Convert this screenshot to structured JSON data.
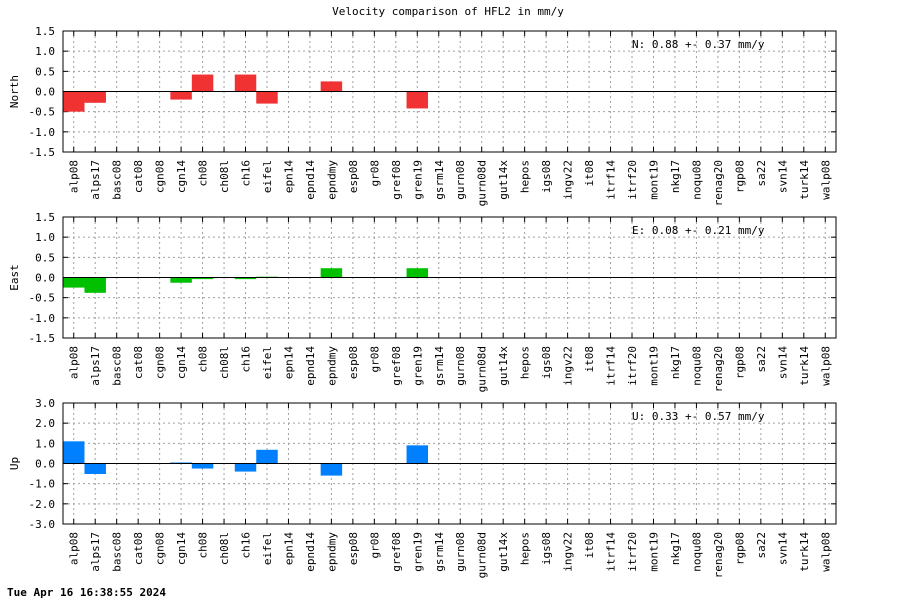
{
  "title": "Velocity comparison of HFL2 in mm/y",
  "timestamp": "Tue Apr 16 16:38:55 2024",
  "chart_data": [
    {
      "type": "bar",
      "ylabel": "North",
      "ylim": [
        -1.5,
        1.5
      ],
      "yticks": [
        "1.5",
        "1.0",
        "0.5",
        "0.0",
        "-0.5",
        "-1.0",
        "-1.5"
      ],
      "grid": true,
      "color": "#f03232",
      "annotation": "N:   0.88 +-  0.37 mm/y",
      "categories": [
        "alp08",
        "alps17",
        "basc08",
        "cat08",
        "cgn08",
        "cgn14",
        "ch08",
        "ch08l",
        "ch16",
        "eifel",
        "epn14",
        "epnd14",
        "epndmy",
        "esp08",
        "gr08",
        "gref08",
        "gren19",
        "gsrm14",
        "gurn08",
        "gurn08d",
        "gut14x",
        "hepos",
        "igs08",
        "ingv22",
        "it08",
        "itrf14",
        "itrf20",
        "mont19",
        "nkg17",
        "noqu08",
        "renag20",
        "rgp08",
        "sa22",
        "svn14",
        "turk14",
        "walp08"
      ],
      "values": [
        -0.5,
        -0.28,
        0,
        0,
        0,
        -0.2,
        0.42,
        0,
        0.42,
        -0.3,
        0,
        0,
        0.25,
        0,
        0,
        0,
        -0.42,
        0,
        0,
        0,
        0,
        0,
        0,
        0,
        0,
        0,
        0,
        0,
        0,
        0,
        0,
        0,
        0,
        0,
        0,
        0
      ]
    },
    {
      "type": "bar",
      "ylabel": "East",
      "ylim": [
        -1.5,
        1.5
      ],
      "yticks": [
        "1.5",
        "1.0",
        "0.5",
        "0.0",
        "-0.5",
        "-1.0",
        "-1.5"
      ],
      "grid": true,
      "color": "#00c000",
      "annotation": "E:   0.08 +-  0.21 mm/y",
      "categories": [
        "alp08",
        "alps17",
        "basc08",
        "cat08",
        "cgn08",
        "cgn14",
        "ch08",
        "ch08l",
        "ch16",
        "eifel",
        "epn14",
        "epnd14",
        "epndmy",
        "esp08",
        "gr08",
        "gref08",
        "gren19",
        "gsrm14",
        "gurn08",
        "gurn08d",
        "gut14x",
        "hepos",
        "igs08",
        "ingv22",
        "it08",
        "itrf14",
        "itrf20",
        "mont19",
        "nkg17",
        "noqu08",
        "renag20",
        "rgp08",
        "sa22",
        "svn14",
        "turk14",
        "walp08"
      ],
      "values": [
        -0.25,
        -0.38,
        0,
        0,
        0,
        -0.13,
        -0.04,
        0,
        -0.04,
        0.02,
        0,
        0,
        0.23,
        0,
        0,
        0,
        0.23,
        0,
        0,
        0,
        0,
        0,
        0,
        0,
        0,
        0,
        0,
        0,
        0,
        0,
        0,
        0,
        0,
        0,
        0,
        0
      ]
    },
    {
      "type": "bar",
      "ylabel": "Up",
      "ylim": [
        -3.0,
        3.0
      ],
      "yticks": [
        "3.0",
        "2.0",
        "1.0",
        "0.0",
        "-1.0",
        "-2.0",
        "-3.0"
      ],
      "grid": true,
      "color": "#0080ff",
      "annotation": "U:   0.33 +-  0.57 mm/y",
      "categories": [
        "alp08",
        "alps17",
        "basc08",
        "cat08",
        "cgn08",
        "cgn14",
        "ch08",
        "ch08l",
        "ch16",
        "eifel",
        "epn14",
        "epnd14",
        "epndmy",
        "esp08",
        "gr08",
        "gref08",
        "gren19",
        "gsrm14",
        "gurn08",
        "gurn08d",
        "gut14x",
        "hepos",
        "igs08",
        "ingv22",
        "it08",
        "itrf14",
        "itrf20",
        "mont19",
        "nkg17",
        "noqu08",
        "renag20",
        "rgp08",
        "sa22",
        "svn14",
        "turk14",
        "walp08"
      ],
      "values": [
        1.1,
        -0.52,
        0,
        0,
        0,
        0.05,
        -0.25,
        0,
        -0.4,
        0.68,
        0,
        0,
        -0.6,
        0,
        0,
        0,
        0.9,
        0,
        0,
        0,
        0,
        0,
        0,
        0,
        0,
        0,
        0,
        0,
        0,
        0,
        0,
        0,
        0,
        0,
        0,
        0
      ]
    }
  ]
}
